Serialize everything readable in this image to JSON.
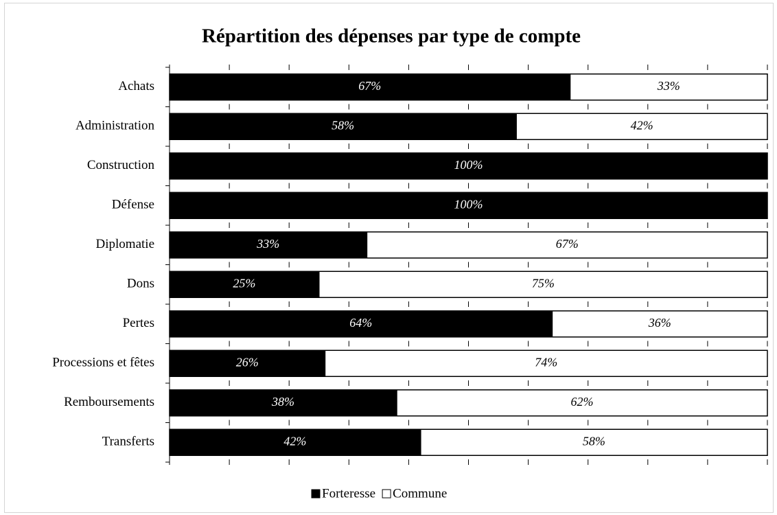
{
  "chart_data": {
    "type": "stacked-bar-horizontal",
    "title": "Répartition des dépenses par type de compte",
    "categories": [
      "Achats",
      "Administration",
      "Construction",
      "Défense",
      "Diplomatie",
      "Dons",
      "Pertes",
      "Processions et fêtes",
      "Remboursements",
      "Transferts"
    ],
    "series": [
      {
        "name": "Forteresse",
        "color": "#000000",
        "values": [
          67,
          58,
          100,
          100,
          33,
          25,
          64,
          26,
          38,
          42
        ],
        "value_labels": [
          "67%",
          "58%",
          "100%",
          "100%",
          "33%",
          "25%",
          "64%",
          "26%",
          "38%",
          "42%"
        ]
      },
      {
        "name": "Commune",
        "color": "#ffffff",
        "values": [
          33,
          42,
          0,
          0,
          67,
          75,
          36,
          74,
          62,
          58
        ],
        "value_labels": [
          "33%",
          "42%",
          null,
          null,
          "67%",
          "75%",
          "36%",
          "74%",
          "62%",
          "58%"
        ]
      }
    ],
    "xlim": [
      0,
      100
    ],
    "xticks": [
      0,
      10,
      20,
      30,
      40,
      50,
      60,
      70,
      80,
      90,
      100
    ],
    "legend": "bottom"
  }
}
